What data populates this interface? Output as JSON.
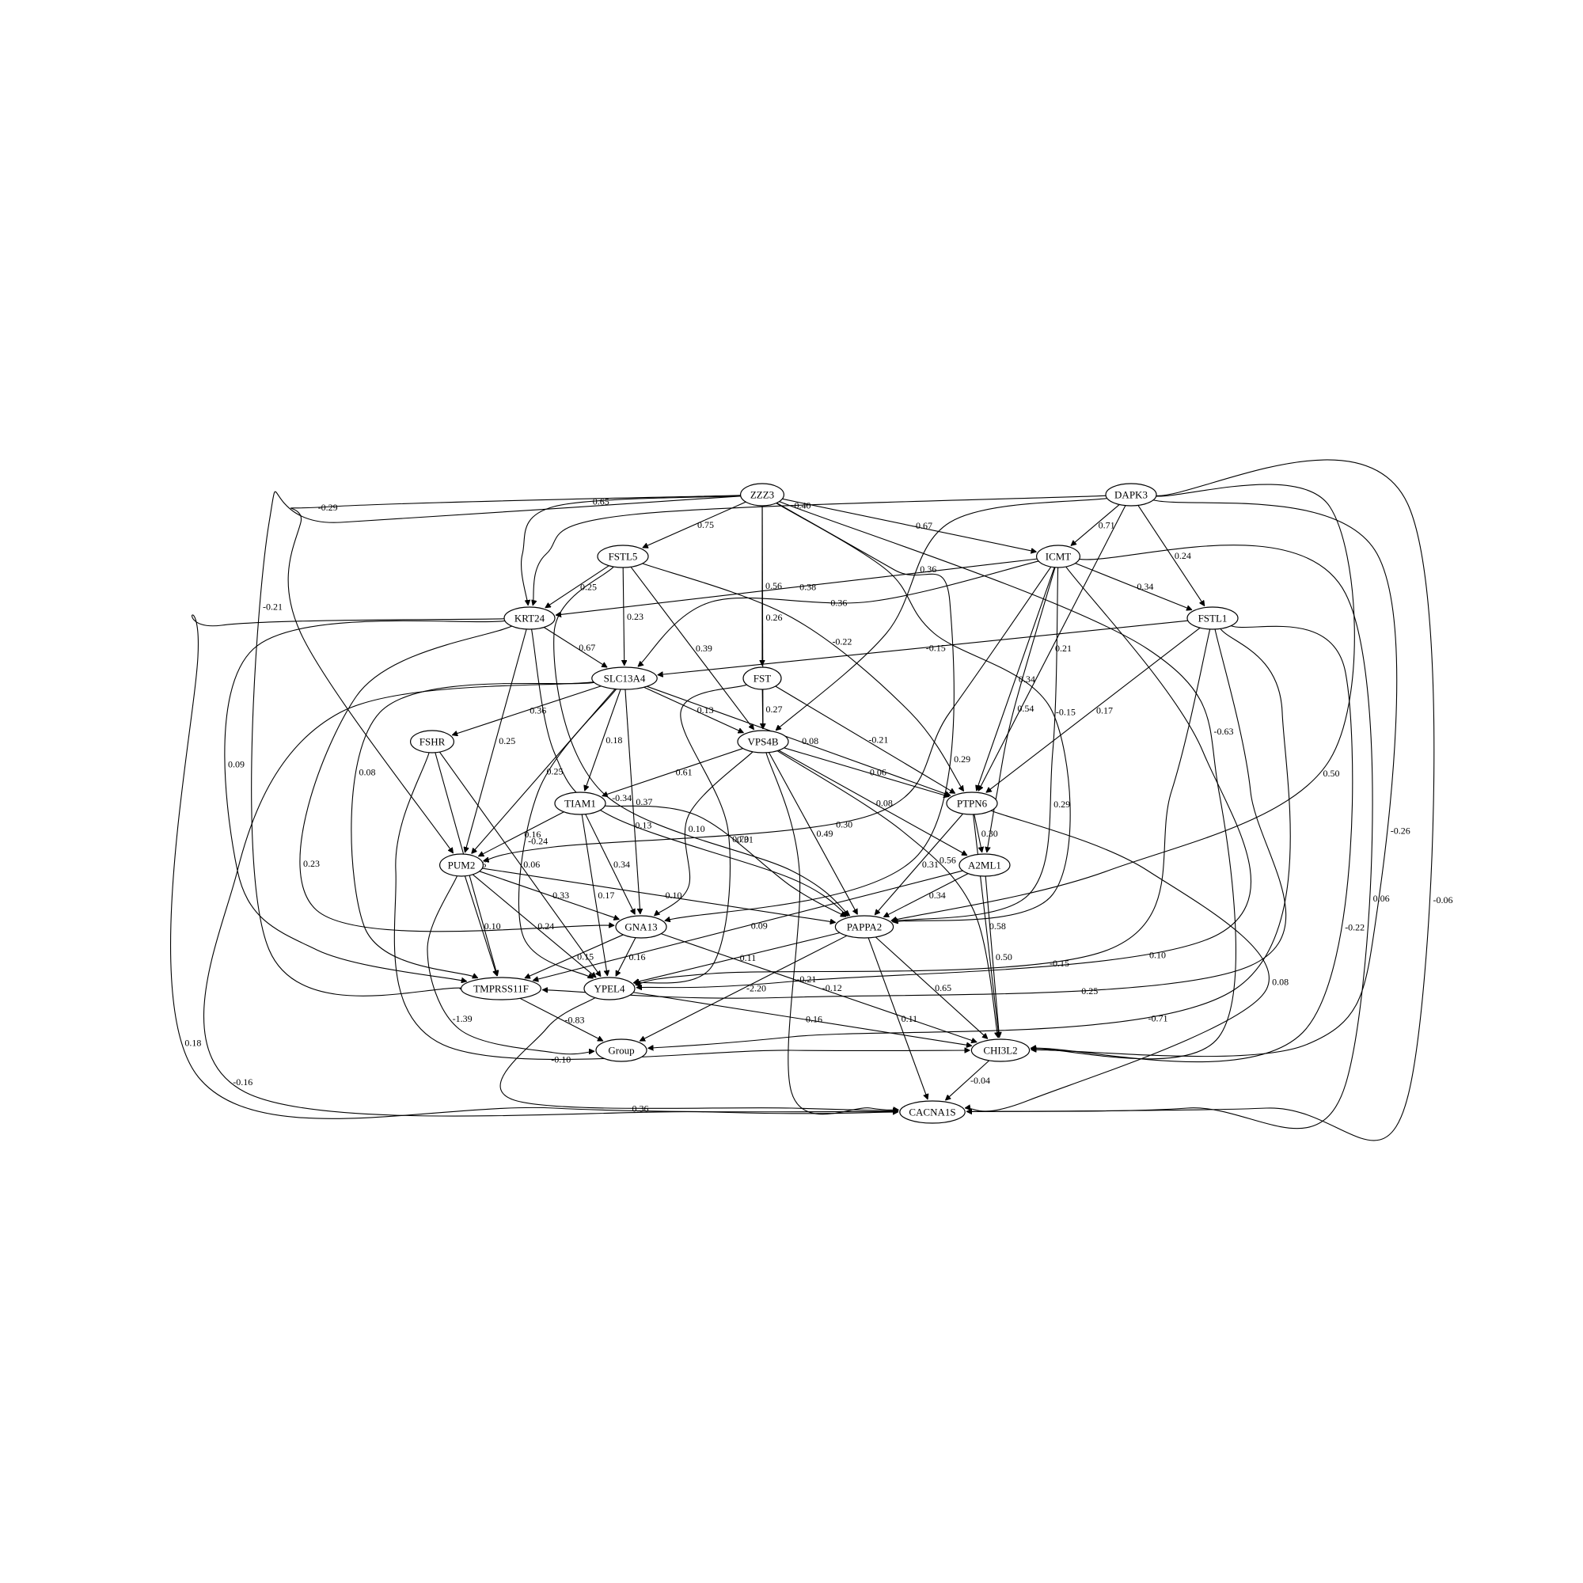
{
  "diagram": {
    "type": "directed-graph",
    "nodes": [
      {
        "id": "ZZZ3",
        "label": "ZZZ3"
      },
      {
        "id": "DAPK3",
        "label": "DAPK3"
      },
      {
        "id": "FSTL5",
        "label": "FSTL5"
      },
      {
        "id": "ICMT",
        "label": "ICMT"
      },
      {
        "id": "KRT24",
        "label": "KRT24"
      },
      {
        "id": "FSTL1",
        "label": "FSTL1"
      },
      {
        "id": "SLC13A4",
        "label": "SLC13A4"
      },
      {
        "id": "FST",
        "label": "FST"
      },
      {
        "id": "FSHR",
        "label": "FSHR"
      },
      {
        "id": "VPS4B",
        "label": "VPS4B"
      },
      {
        "id": "TIAM1",
        "label": "TIAM1"
      },
      {
        "id": "PTPN6",
        "label": "PTPN6"
      },
      {
        "id": "PUM2",
        "label": "PUM2"
      },
      {
        "id": "A2ML1",
        "label": "A2ML1"
      },
      {
        "id": "GNA13",
        "label": "GNA13"
      },
      {
        "id": "PAPPA2",
        "label": "PAPPA2"
      },
      {
        "id": "TMPRSS11F",
        "label": "TMPRSS11F"
      },
      {
        "id": "YPEL4",
        "label": "YPEL4"
      },
      {
        "id": "Group",
        "label": "Group"
      },
      {
        "id": "CHI3L2",
        "label": "CHI3L2"
      },
      {
        "id": "CACNA1S",
        "label": "CACNA1S"
      }
    ],
    "edges": [
      {
        "from": "ZZZ3",
        "to": "FSTL5",
        "label": "0.75"
      },
      {
        "from": "ZZZ3",
        "to": "ICMT",
        "label": "-0.67"
      },
      {
        "from": "ZZZ3",
        "to": "KRT24",
        "label": "0.65"
      },
      {
        "from": "ZZZ3",
        "to": "FST",
        "label": "0.56"
      },
      {
        "from": "ZZZ3",
        "to": "VPS4B",
        "label": "0.26"
      },
      {
        "from": "ZZZ3",
        "to": "GNA13",
        "label": "0.29"
      },
      {
        "from": "ZZZ3",
        "to": "PUM2",
        "label": "-0.29"
      },
      {
        "from": "ZZZ3",
        "to": "TMPRSS11F",
        "label": "-0.21"
      },
      {
        "from": "ZZZ3",
        "to": "PAPPA2",
        "label": "-0.15"
      },
      {
        "from": "ZZZ3",
        "to": "CHI3L2",
        "label": "-0.63"
      },
      {
        "from": "DAPK3",
        "to": "ICMT",
        "label": "0.71"
      },
      {
        "from": "DAPK3",
        "to": "FSTL1",
        "label": "0.24"
      },
      {
        "from": "DAPK3",
        "to": "KRT24",
        "label": "0.40"
      },
      {
        "from": "DAPK3",
        "to": "PTPN6",
        "label": "0.21"
      },
      {
        "from": "DAPK3",
        "to": "VPS4B",
        "label": "0.36"
      },
      {
        "from": "DAPK3",
        "to": "PAPPA2",
        "label": "0.50"
      },
      {
        "from": "DAPK3",
        "to": "CHI3L2",
        "label": "-0.26"
      },
      {
        "from": "DAPK3",
        "to": "CACNA1S",
        "label": "-0.06"
      },
      {
        "from": "FSTL5",
        "to": "KRT24",
        "label": "0.25"
      },
      {
        "from": "FSTL5",
        "to": "SLC13A4",
        "label": "0.23"
      },
      {
        "from": "FSTL5",
        "to": "VPS4B",
        "label": "0.39"
      },
      {
        "from": "FSTL5",
        "to": "PTPN6",
        "label": "-0.22"
      },
      {
        "from": "FSTL5",
        "to": "PAPPA2",
        "label": "-0.34"
      },
      {
        "from": "ICMT",
        "to": "KRT24",
        "label": "0.38"
      },
      {
        "from": "ICMT",
        "to": "FSTL1",
        "label": "0.34"
      },
      {
        "from": "ICMT",
        "to": "SLC13A4",
        "label": "0.36"
      },
      {
        "from": "ICMT",
        "to": "PTPN6",
        "label": "0.34"
      },
      {
        "from": "ICMT",
        "to": "A2ML1",
        "label": "0.54"
      },
      {
        "from": "ICMT",
        "to": "PUM2",
        "label": "0.30"
      },
      {
        "from": "ICMT",
        "to": "PAPPA2",
        "label": "0.29"
      },
      {
        "from": "ICMT",
        "to": "YPEL4",
        "label": "0.10"
      },
      {
        "from": "ICMT",
        "to": "CACNA1S",
        "label": "0.06"
      },
      {
        "from": "KRT24",
        "to": "SLC13A4",
        "label": "0.67"
      },
      {
        "from": "KRT24",
        "to": "PUM2",
        "label": "0.25"
      },
      {
        "from": "KRT24",
        "to": "GNA13",
        "label": "0.23"
      },
      {
        "from": "KRT24",
        "to": "PAPPA2",
        "label": "0.13"
      },
      {
        "from": "KRT24",
        "to": "TMPRSS11F",
        "label": "0.09"
      },
      {
        "from": "KRT24",
        "to": "CACNA1S",
        "label": "0.18"
      },
      {
        "from": "FSTL1",
        "to": "SLC13A4",
        "label": "-0.15"
      },
      {
        "from": "FSTL1",
        "to": "PTPN6",
        "label": "0.17"
      },
      {
        "from": "FSTL1",
        "to": "YPEL4",
        "label": "-0.15"
      },
      {
        "from": "FSTL1",
        "to": "TMPRSS11F",
        "label": "0.25"
      },
      {
        "from": "FSTL1",
        "to": "Group",
        "label": "-0.71"
      },
      {
        "from": "FSTL1",
        "to": "CHI3L2",
        "label": "-0.22"
      },
      {
        "from": "SLC13A4",
        "to": "FSHR",
        "label": "0.36"
      },
      {
        "from": "SLC13A4",
        "to": "VPS4B",
        "label": "0.13"
      },
      {
        "from": "SLC13A4",
        "to": "TIAM1",
        "label": "0.18"
      },
      {
        "from": "SLC13A4",
        "to": "PTPN6",
        "label": "0.08"
      },
      {
        "from": "SLC13A4",
        "to": "PUM2",
        "label": "0.25"
      },
      {
        "from": "SLC13A4",
        "to": "GNA13",
        "label": "0.37"
      },
      {
        "from": "SLC13A4",
        "to": "YPEL4",
        "label": "-0.24"
      },
      {
        "from": "SLC13A4",
        "to": "TMPRSS11F",
        "label": "0.08"
      },
      {
        "from": "SLC13A4",
        "to": "CACNA1S",
        "label": "-0.16"
      },
      {
        "from": "FST",
        "to": "VPS4B",
        "label": "0.27"
      },
      {
        "from": "FST",
        "to": "PTPN6",
        "label": "-0.21"
      },
      {
        "from": "FST",
        "to": "YPEL4",
        "label": "0.70"
      },
      {
        "from": "FSHR",
        "to": "TMPRSS11F",
        "label": "0.06"
      },
      {
        "from": "FSHR",
        "to": "YPEL4",
        "label": "0.06"
      },
      {
        "from": "FSHR",
        "to": "CHI3L2",
        "label": "-0.10"
      },
      {
        "from": "VPS4B",
        "to": "TIAM1",
        "label": "0.61"
      },
      {
        "from": "VPS4B",
        "to": "PTPN6",
        "label": "0.06"
      },
      {
        "from": "VPS4B",
        "to": "A2ML1",
        "label": "0.08"
      },
      {
        "from": "VPS4B",
        "to": "GNA13",
        "label": "0.10"
      },
      {
        "from": "VPS4B",
        "to": "PAPPA2",
        "label": "0.49"
      },
      {
        "from": "VPS4B",
        "to": "CHI3L2",
        "label": "0.56"
      },
      {
        "from": "VPS4B",
        "to": "CACNA1S",
        "label": "-0.21"
      },
      {
        "from": "TIAM1",
        "to": "PUM2",
        "label": "0.16"
      },
      {
        "from": "TIAM1",
        "to": "GNA13",
        "label": "0.34"
      },
      {
        "from": "TIAM1",
        "to": "YPEL4",
        "label": "0.17"
      },
      {
        "from": "TIAM1",
        "to": "PAPPA2",
        "label": "0.31"
      },
      {
        "from": "PTPN6",
        "to": "A2ML1",
        "label": "0.30"
      },
      {
        "from": "PTPN6",
        "to": "PAPPA2",
        "label": "0.31"
      },
      {
        "from": "PTPN6",
        "to": "CHI3L2",
        "label": "0.58"
      },
      {
        "from": "PTPN6",
        "to": "CACNA1S",
        "label": "0.08"
      },
      {
        "from": "PUM2",
        "to": "GNA13",
        "label": "0.33"
      },
      {
        "from": "PUM2",
        "to": "PAPPA2",
        "label": "-0.10"
      },
      {
        "from": "PUM2",
        "to": "TMPRSS11F",
        "label": "0.10"
      },
      {
        "from": "PUM2",
        "to": "YPEL4",
        "label": "0.24"
      },
      {
        "from": "PUM2",
        "to": "Group",
        "label": "-1.39"
      },
      {
        "from": "A2ML1",
        "to": "PAPPA2",
        "label": "0.34"
      },
      {
        "from": "A2ML1",
        "to": "TMPRSS11F",
        "label": "0.09"
      },
      {
        "from": "A2ML1",
        "to": "CHI3L2",
        "label": "0.50"
      },
      {
        "from": "GNA13",
        "to": "TMPRSS11F",
        "label": "0.15"
      },
      {
        "from": "GNA13",
        "to": "YPEL4",
        "label": "0.16"
      },
      {
        "from": "GNA13",
        "to": "CHI3L2",
        "label": "-0.12"
      },
      {
        "from": "PAPPA2",
        "to": "YPEL4",
        "label": "0.11"
      },
      {
        "from": "PAPPA2",
        "to": "Group",
        "label": "-2.20"
      },
      {
        "from": "PAPPA2",
        "to": "CHI3L2",
        "label": "0.65"
      },
      {
        "from": "PAPPA2",
        "to": "CACNA1S",
        "label": "0.11"
      },
      {
        "from": "TMPRSS11F",
        "to": "Group",
        "label": "-0.83"
      },
      {
        "from": "YPEL4",
        "to": "CHI3L2",
        "label": "0.16"
      },
      {
        "from": "YPEL4",
        "to": "CACNA1S",
        "label": "0.36"
      },
      {
        "from": "CHI3L2",
        "to": "CACNA1S",
        "label": "-0.04"
      }
    ]
  }
}
